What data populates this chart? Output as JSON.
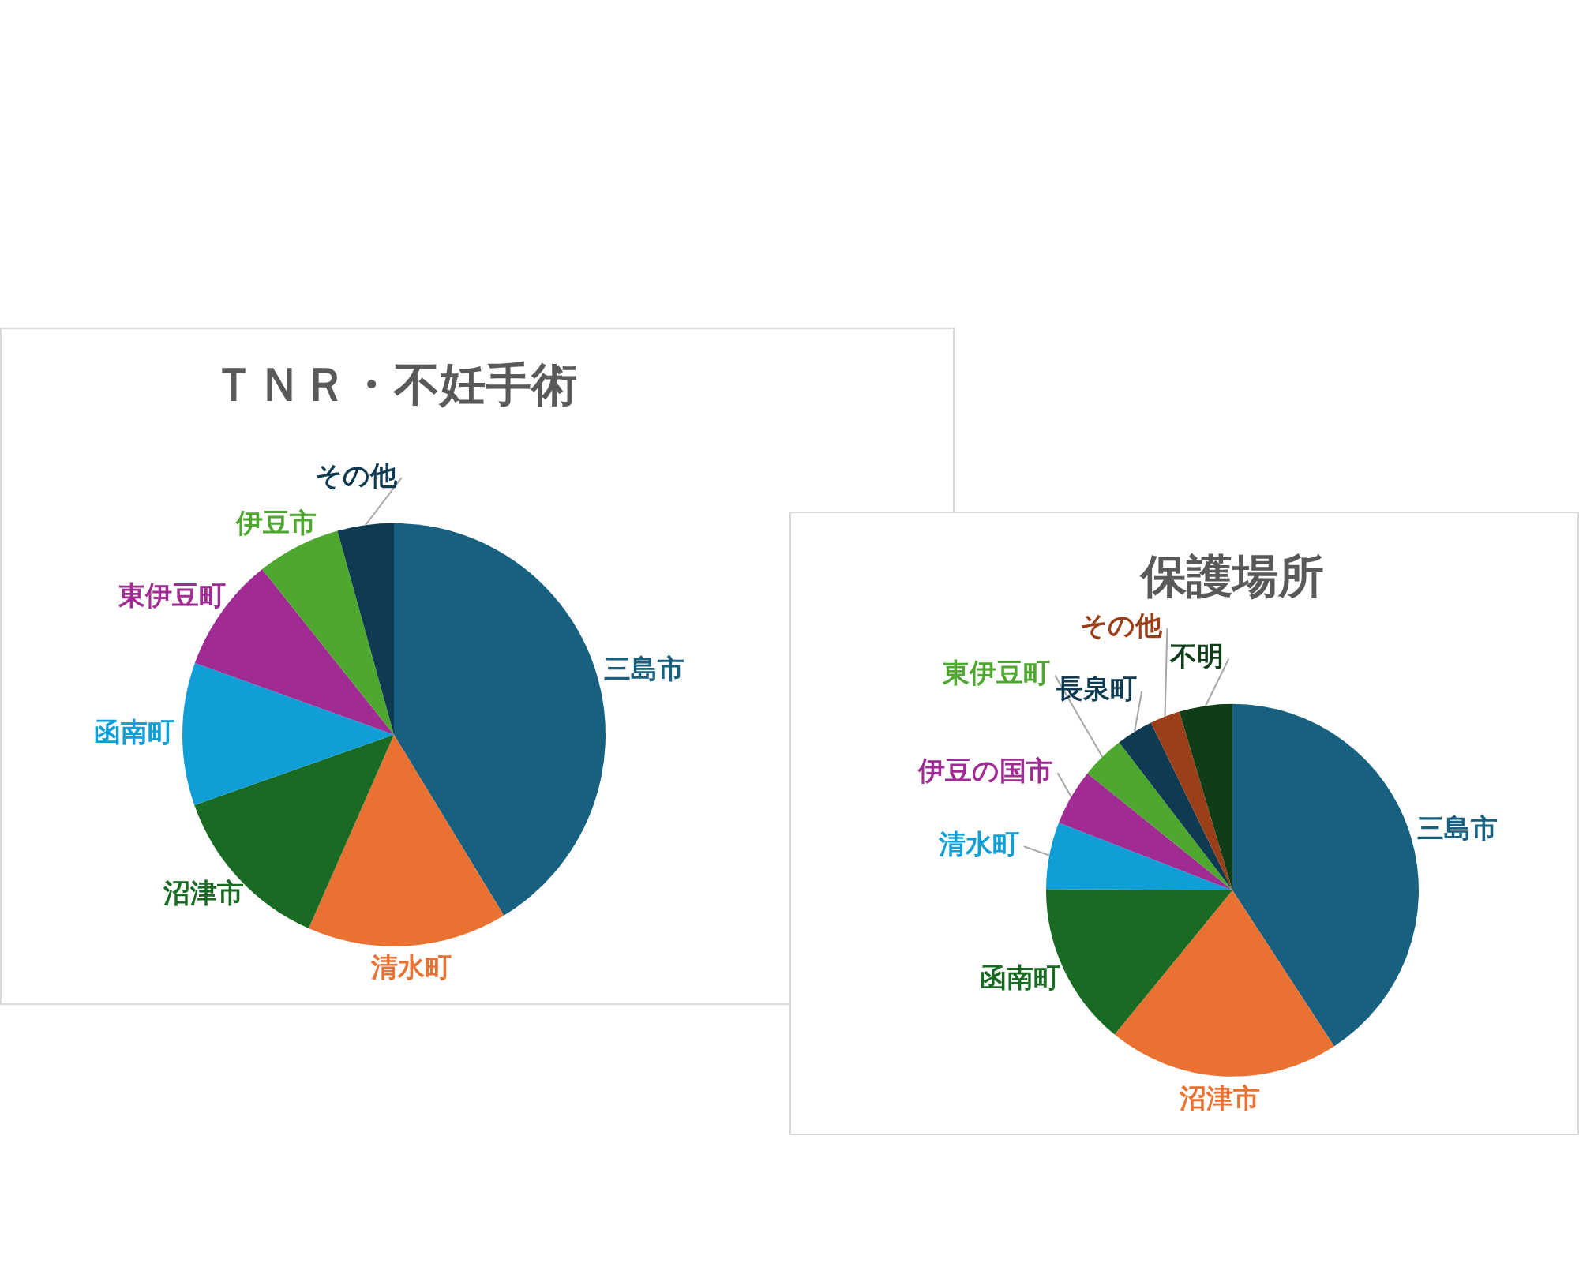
{
  "chart_data": [
    {
      "type": "pie",
      "title": "ＴＮＲ・不妊手術",
      "categories": [
        "三島市",
        "清水町",
        "沼津市",
        "函南町",
        "東伊豆町",
        "伊豆市",
        "その他"
      ],
      "values": [
        41.3,
        15.3,
        13.0,
        10.9,
        8.8,
        6.4,
        4.3
      ],
      "colors": [
        "#17607f",
        "#e97132",
        "#196b24",
        "#0f9ed5",
        "#a02b93",
        "#4ea72e",
        "#0e3a52"
      ]
    },
    {
      "type": "pie",
      "title": "保護場所",
      "categories": [
        "三島市",
        "沼津市",
        "函南町",
        "清水町",
        "伊豆の国市",
        "東伊豆町",
        "長泉町",
        "その他",
        "不明"
      ],
      "values": [
        40.8,
        20.1,
        14.2,
        5.8,
        4.9,
        3.8,
        3.2,
        2.6,
        4.6
      ],
      "colors": [
        "#17607f",
        "#e97132",
        "#196b24",
        "#0f9ed5",
        "#a02b93",
        "#4ea72e",
        "#0e3a52",
        "#9a3f17",
        "#0f3d17"
      ]
    }
  ]
}
